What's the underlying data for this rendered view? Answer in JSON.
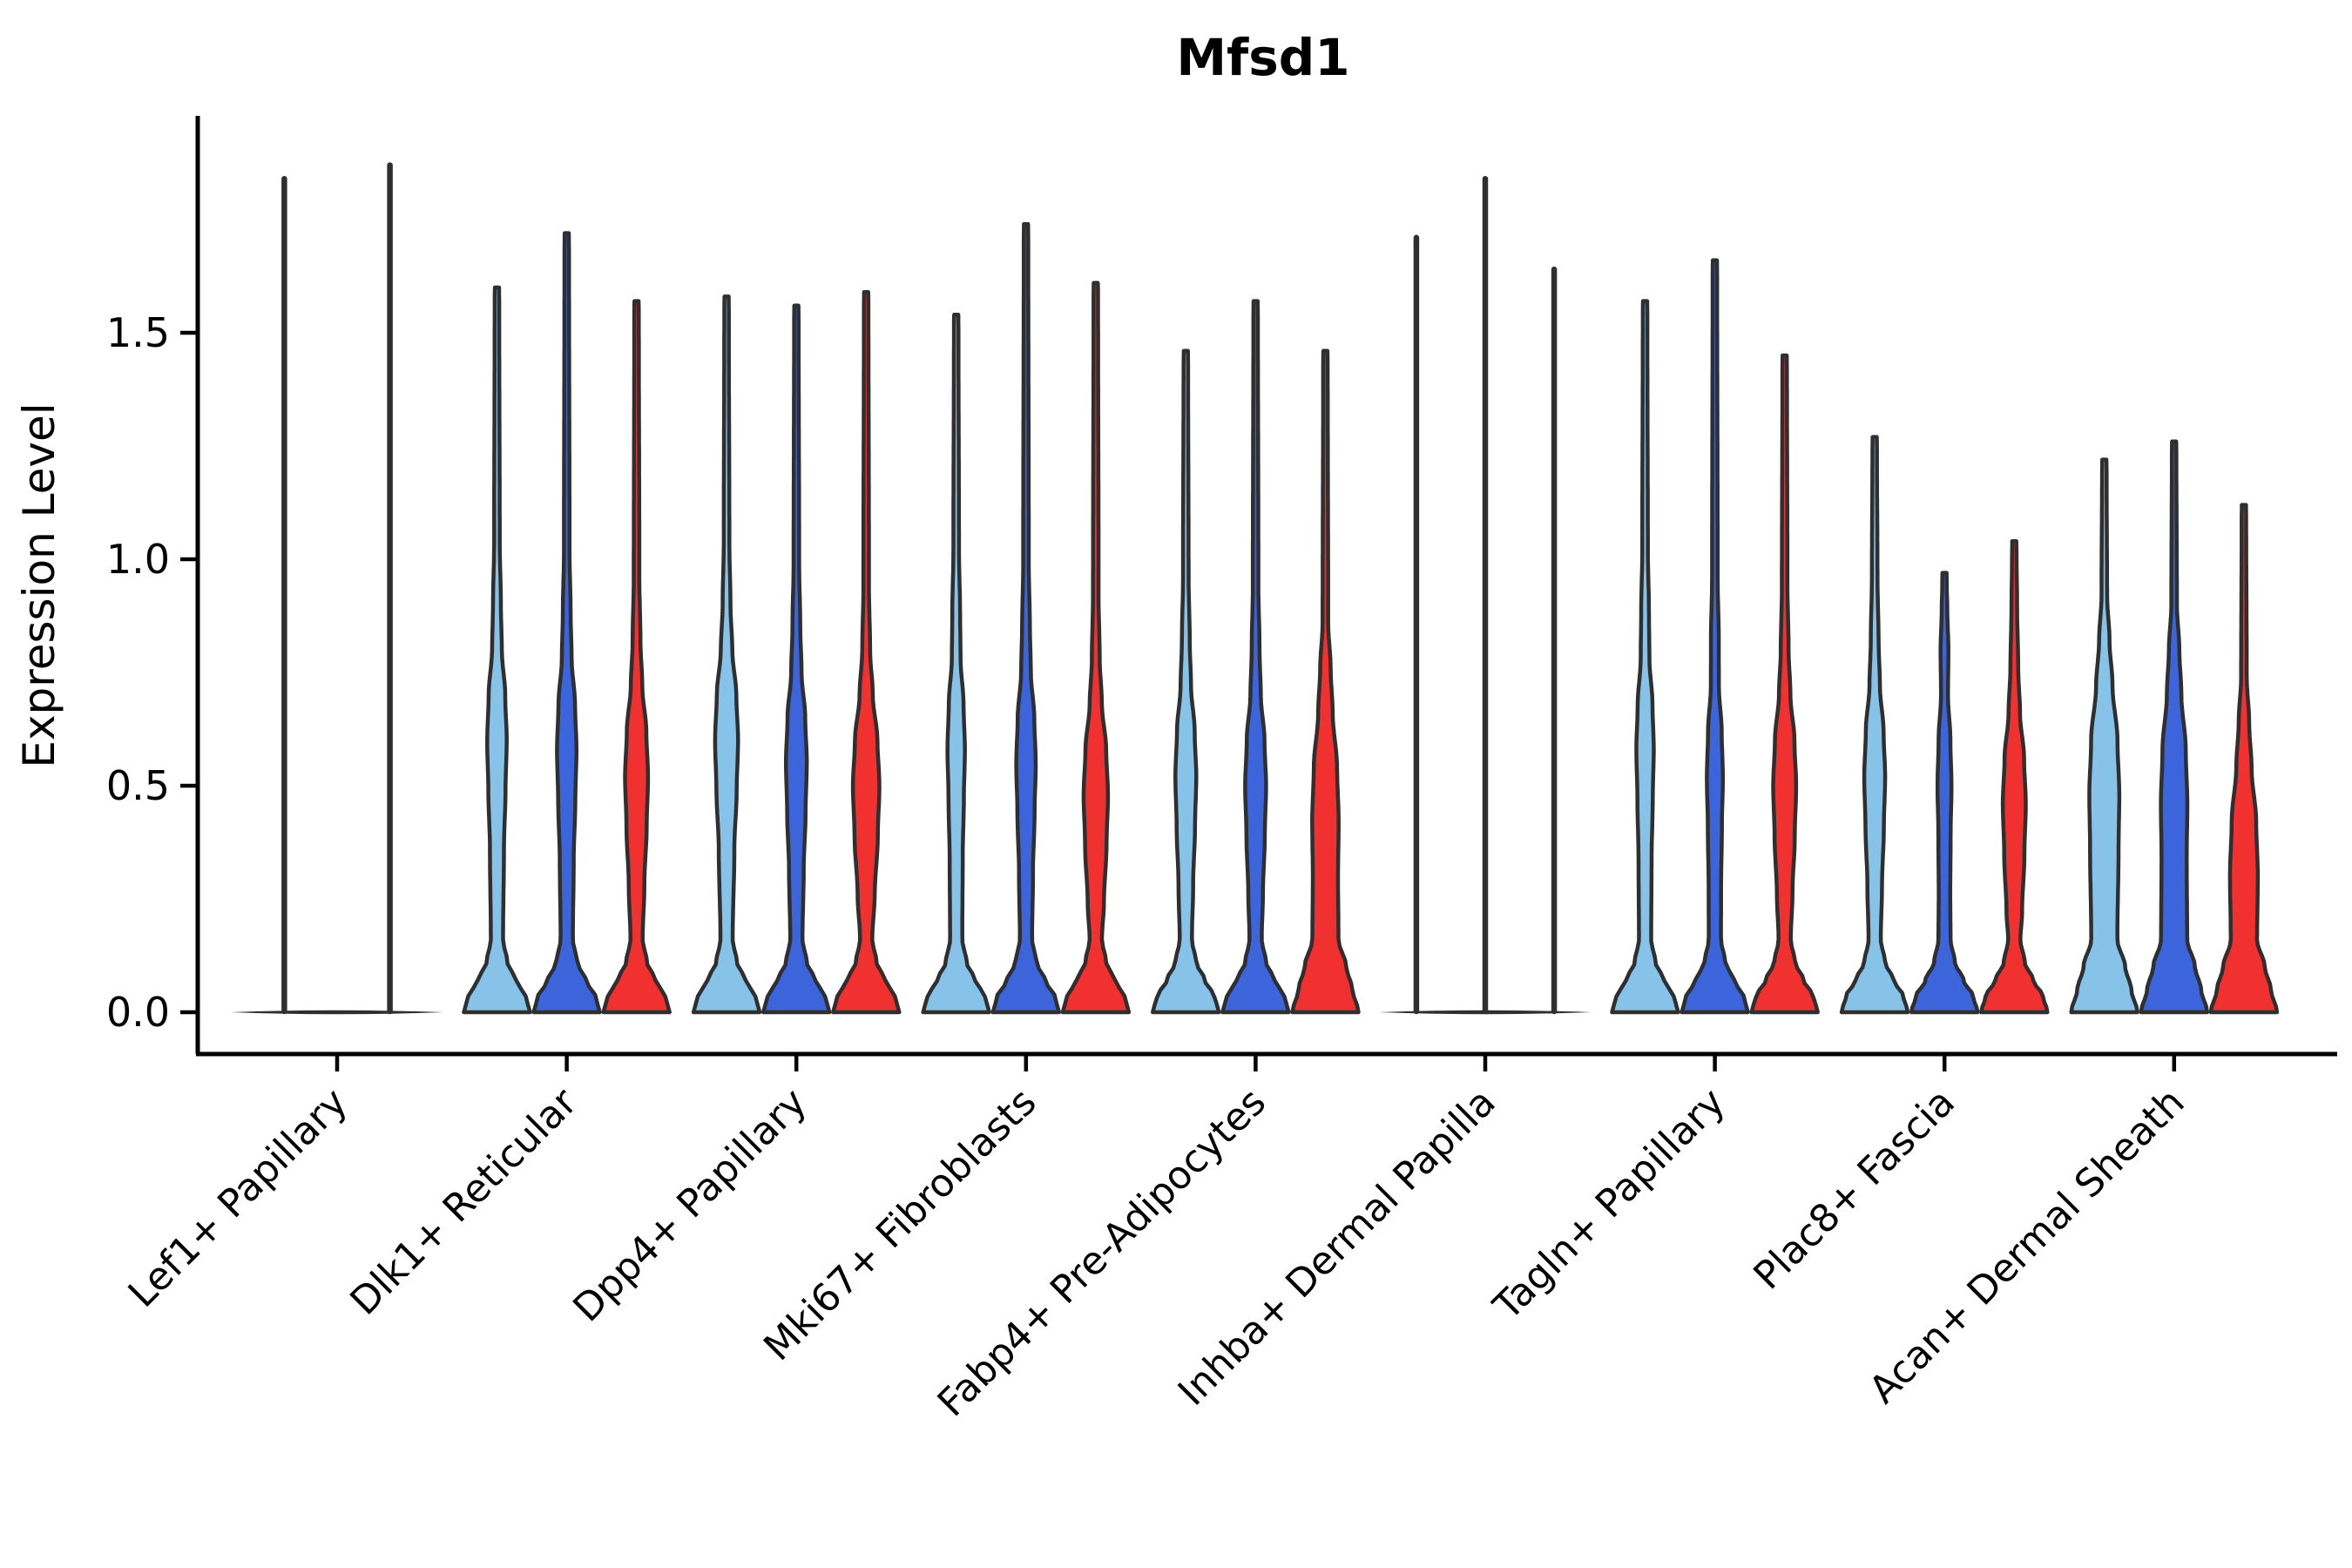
{
  "title": "Mfsd1",
  "y_axis": {
    "label": "Expression Level"
  },
  "chart_data": {
    "type": "violin",
    "title": "Mfsd1",
    "xlabel": "",
    "ylabel": "Expression Level",
    "ylim": [
      0,
      1.98
    ],
    "yticks": [
      0.0,
      0.5,
      1.0,
      1.5
    ],
    "grid": false,
    "legend": "none",
    "outline_color": "#2F2F2F",
    "series": [
      {
        "name": "sample-light-blue",
        "color": "#87C3E8"
      },
      {
        "name": "sample-royal-blue",
        "color": "#3C64DB"
      },
      {
        "name": "sample-red",
        "color": "#F13030"
      }
    ],
    "categories": [
      "Lef1+ Papillary",
      "Dlk1+ Reticular",
      "Dpp4+ Papillary",
      "Mki67+ Fibroblasts",
      "Fabp4+ Pre-Adipocytes",
      "Inhba+ Dermal Papilla",
      "Tagln+ Papillary",
      "Plac8+ Fascia",
      "Acan+ Dermal Sheath"
    ],
    "groups": [
      {
        "category": "Lef1+ Papillary",
        "collapsed": true,
        "spikes": [
          {
            "offset": -0.23,
            "max": 1.84
          },
          {
            "offset": 0.23,
            "max": 1.87
          }
        ]
      },
      {
        "category": "Dlk1+ Reticular",
        "violins": [
          {
            "series": 0,
            "max": 1.6,
            "bulge_center": 0.6,
            "bulge_width": 0.28,
            "column": false
          },
          {
            "series": 1,
            "max": 1.72,
            "bulge_center": 0.58,
            "bulge_width": 0.28,
            "column": false
          },
          {
            "series": 2,
            "max": 1.57,
            "bulge_center": 0.52,
            "bulge_width": 0.33,
            "column": false
          }
        ]
      },
      {
        "category": "Dpp4+ Papillary",
        "violins": [
          {
            "series": 0,
            "max": 1.58,
            "bulge_center": 0.6,
            "bulge_width": 0.33,
            "column": false
          },
          {
            "series": 1,
            "max": 1.56,
            "bulge_center": 0.55,
            "bulge_width": 0.3,
            "column": false
          },
          {
            "series": 2,
            "max": 1.59,
            "bulge_center": 0.5,
            "bulge_width": 0.38,
            "column": false
          }
        ]
      },
      {
        "category": "Mki67+ Fibroblasts",
        "violins": [
          {
            "series": 0,
            "max": 1.54,
            "bulge_center": 0.58,
            "bulge_width": 0.25,
            "column": false
          },
          {
            "series": 1,
            "max": 1.74,
            "bulge_center": 0.55,
            "bulge_width": 0.28,
            "column": false
          },
          {
            "series": 2,
            "max": 1.61,
            "bulge_center": 0.48,
            "bulge_width": 0.35,
            "column": false
          }
        ]
      },
      {
        "category": "Fabp4+ Pre-Adipocytes",
        "violins": [
          {
            "series": 0,
            "max": 1.46,
            "bulge_center": 0.52,
            "bulge_width": 0.3,
            "column": false
          },
          {
            "series": 1,
            "max": 1.57,
            "bulge_center": 0.5,
            "bulge_width": 0.3,
            "column": false
          },
          {
            "series": 2,
            "max": 1.46,
            "bulge_center": 0.42,
            "bulge_width": 0.38,
            "column": true
          }
        ]
      },
      {
        "category": "Inhba+ Dermal Papilla",
        "collapsed": true,
        "spikes": [
          {
            "offset": -0.3,
            "max": 1.71
          },
          {
            "offset": 0.0,
            "max": 1.84
          },
          {
            "offset": 0.3,
            "max": 1.64
          }
        ]
      },
      {
        "category": "Tagln+ Papillary",
        "violins": [
          {
            "series": 0,
            "max": 1.57,
            "bulge_center": 0.58,
            "bulge_width": 0.25,
            "column": false
          },
          {
            "series": 1,
            "max": 1.66,
            "bulge_center": 0.52,
            "bulge_width": 0.23,
            "column": false
          },
          {
            "series": 2,
            "max": 1.45,
            "bulge_center": 0.5,
            "bulge_width": 0.33,
            "column": false
          }
        ]
      },
      {
        "category": "Plac8+ Fascia",
        "violins": [
          {
            "series": 0,
            "max": 1.27,
            "bulge_center": 0.52,
            "bulge_width": 0.3,
            "column": false
          },
          {
            "series": 1,
            "max": 0.97,
            "bulge_center": 0.5,
            "bulge_width": 0.2,
            "column": false
          },
          {
            "series": 2,
            "max": 1.04,
            "bulge_center": 0.46,
            "bulge_width": 0.33,
            "column": false
          }
        ]
      },
      {
        "category": "Acan+ Dermal Sheath",
        "violins": [
          {
            "series": 0,
            "max": 1.22,
            "bulge_center": 0.48,
            "bulge_width": 0.43,
            "column": true
          },
          {
            "series": 1,
            "max": 1.26,
            "bulge_center": 0.46,
            "bulge_width": 0.38,
            "column": true
          },
          {
            "series": 2,
            "max": 1.12,
            "bulge_center": 0.3,
            "bulge_width": 0.4,
            "column": true
          }
        ]
      }
    ]
  }
}
